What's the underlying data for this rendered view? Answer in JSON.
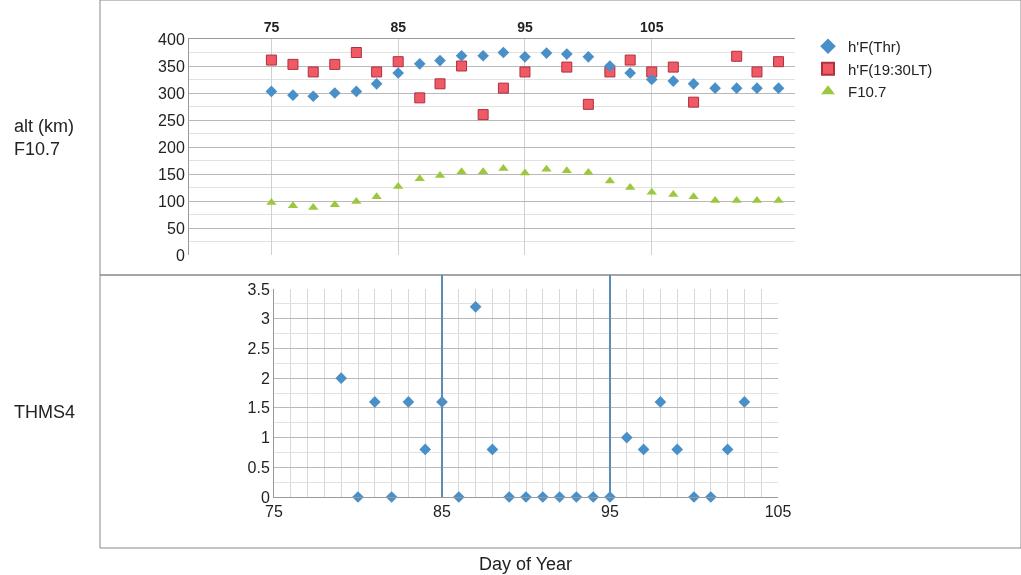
{
  "chart_data": [
    {
      "type": "scatter",
      "ylabel": "alt (km)\nF10.7",
      "legend": "right",
      "grid": true,
      "tick_labels": true,
      "x": [
        75,
        76.7,
        78.3,
        80,
        81.7,
        83.3,
        85,
        86.7,
        88.3,
        90,
        91.7,
        93.3,
        95,
        96.7,
        98.3,
        100,
        101.7,
        103.3,
        105,
        106.7,
        108.3,
        110,
        111.7,
        113.3,
        115
      ],
      "xlim": [
        68.5,
        116.3
      ],
      "xticks": [
        75,
        85,
        95,
        105
      ],
      "ylim": [
        0,
        400
      ],
      "yticks": [
        0,
        50,
        100,
        150,
        200,
        250,
        300,
        350,
        400
      ],
      "series": [
        {
          "name": "h'F(Thr)",
          "color": "#4a90c8",
          "marker": "diamond",
          "values": [
            303,
            296,
            294,
            300,
            303,
            317,
            337,
            354,
            360,
            369,
            369,
            375,
            367,
            374,
            372,
            367,
            350,
            337,
            325,
            322,
            317,
            309,
            309,
            309,
            309
          ]
        },
        {
          "name": "h'F(19:30LT)",
          "color": "#f05a64",
          "marker": "square",
          "values": [
            361,
            353,
            339,
            353,
            375,
            339,
            358,
            291,
            317,
            350,
            260,
            309,
            339,
            null,
            348,
            279,
            339,
            361,
            339,
            348,
            283,
            null,
            368,
            339,
            358
          ]
        },
        {
          "name": "F10.7",
          "color": "#9bc83c",
          "marker": "triangle",
          "values": [
            97,
            91,
            88,
            93,
            99,
            108,
            127,
            141,
            147,
            154,
            154,
            160,
            152,
            159,
            156,
            153,
            137,
            125,
            116,
            112,
            108,
            101,
            101,
            101,
            101
          ]
        }
      ]
    },
    {
      "type": "scatter",
      "ylabel": "THMS4",
      "xlabel": "Day of Year",
      "grid": true,
      "marker": "diamond",
      "x": [
        79,
        80,
        81,
        82,
        83,
        84,
        85,
        86,
        87,
        88,
        89,
        90,
        91,
        92,
        93,
        94,
        95,
        96,
        97,
        98,
        99,
        100,
        101,
        102,
        103
      ],
      "xlim": [
        75,
        105
      ],
      "xticks": [
        75,
        85,
        95,
        105
      ],
      "ylim": [
        0,
        3.5
      ],
      "yticks": [
        0,
        0.5,
        1,
        1.5,
        2,
        2.5,
        3,
        3.5
      ],
      "series": [
        {
          "color": "#4a90c8",
          "values": [
            2,
            0,
            1.6,
            0,
            1.6,
            0.8,
            1.6,
            0,
            3.2,
            0.8,
            0,
            0,
            0,
            0,
            0,
            0,
            0,
            1,
            0.8,
            1.6,
            0.8,
            0,
            0,
            0.8,
            1.6
          ]
        }
      ],
      "ref_lines": [
        {
          "axis": "x",
          "value": 85,
          "color": "#5b8db8"
        },
        {
          "axis": "x",
          "value": 95,
          "color": "#5b8db8"
        }
      ]
    }
  ]
}
